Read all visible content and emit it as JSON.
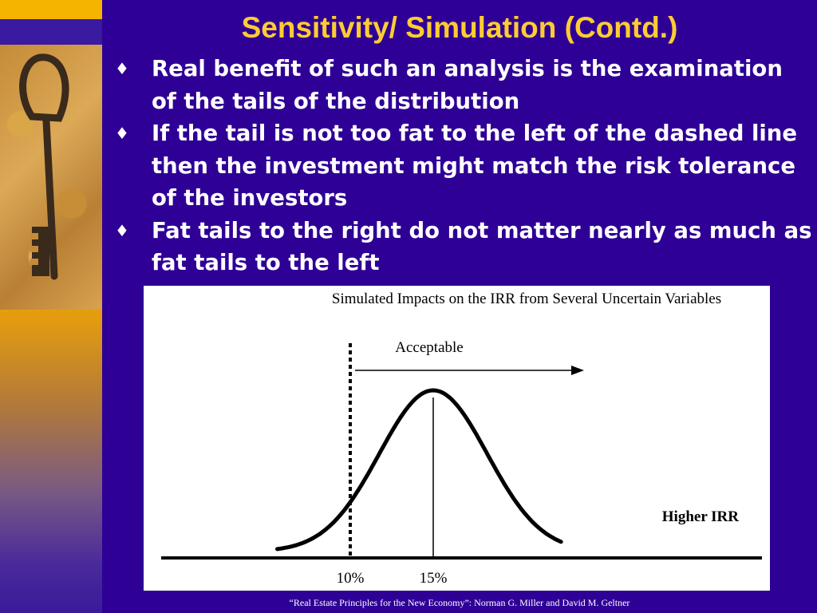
{
  "slide": {
    "title": "Sensitivity/ Simulation (Contd.)",
    "bullet_marker": "♦",
    "bullets": [
      "Real benefit of such an analysis is the examination of the tails of the distribution",
      "If the tail is not too fat to the left of the dashed line then the investment might match the risk tolerance of the investors",
      "Fat tails to the right do not matter nearly as much as fat tails to the left"
    ],
    "footer": "“Real Estate Principles for the New Economy”: Norman G. Miller and David M. Geltner"
  },
  "colors": {
    "background": "#2e0096",
    "title": "#ffcc33",
    "text": "#ffffff",
    "chart_background": "#ffffff"
  },
  "icons": {
    "key_photo": "antique-key-icon"
  },
  "chart_data": {
    "type": "line",
    "title": "Simulated Impacts on the IRR from Several Uncertain Variables",
    "xlabel": "Higher IRR",
    "ylabel": "",
    "x_ticks": [
      "10%",
      "15%"
    ],
    "annotations": [
      "Acceptable"
    ],
    "threshold_irr": 10,
    "mean_irr": 15,
    "distribution": "normal",
    "grid": false,
    "legend": "none"
  }
}
